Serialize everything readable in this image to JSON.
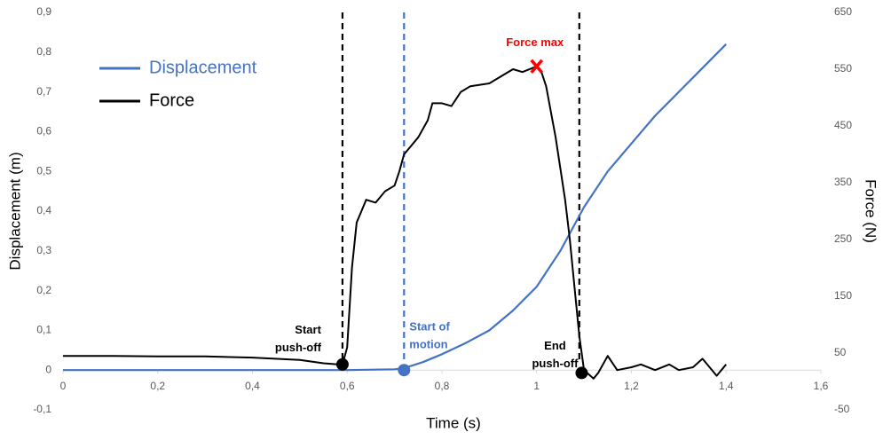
{
  "chart_data": {
    "type": "line",
    "xlabel": "Time (s)",
    "ylabel": "Displacement (m)",
    "y2label": "Force (N)",
    "xlim": [
      0,
      1.6
    ],
    "xticks": [
      0,
      {
        "value": 0.2,
        "label": "0,2"
      },
      {
        "value": 0.4,
        "label": "0,4"
      },
      {
        "value": 0.6,
        "label": "0,6"
      },
      {
        "value": 0.8,
        "label": "0,8"
      },
      1,
      {
        "value": 1.2,
        "label": "1,2"
      },
      {
        "value": 1.4,
        "label": "1,4"
      },
      {
        "value": 1.6,
        "label": "1,6"
      }
    ],
    "ylim": [
      -0.1,
      0.9
    ],
    "yticks": [
      {
        "value": -0.1,
        "label": "-0,1"
      },
      0,
      {
        "value": 0.1,
        "label": "0,1"
      },
      {
        "value": 0.2,
        "label": "0,2"
      },
      {
        "value": 0.3,
        "label": "0,3"
      },
      {
        "value": 0.4,
        "label": "0,4"
      },
      {
        "value": 0.5,
        "label": "0,5"
      },
      {
        "value": 0.6,
        "label": "0,6"
      },
      {
        "value": 0.7,
        "label": "0,7"
      },
      {
        "value": 0.8,
        "label": "0,8"
      },
      {
        "value": 0.9,
        "label": "0,9"
      }
    ],
    "y2lim": [
      -50,
      650
    ],
    "y2ticks": [
      -50,
      50,
      150,
      250,
      350,
      450,
      550,
      650
    ],
    "legend": "upper left",
    "series": [
      {
        "name": "Displacement",
        "color": "#4472c4",
        "axis": "y",
        "x": [
          0,
          0.2,
          0.4,
          0.6,
          0.7,
          0.72,
          0.76,
          0.8,
          0.85,
          0.9,
          0.95,
          1.0,
          1.05,
          1.1,
          1.15,
          1.2,
          1.25,
          1.3,
          1.35,
          1.4
        ],
        "values": [
          0,
          0,
          0,
          0,
          0.002,
          0.005,
          0.02,
          0.04,
          0.068,
          0.1,
          0.15,
          0.21,
          0.3,
          0.41,
          0.5,
          0.57,
          0.64,
          0.7,
          0.76,
          0.82
        ]
      },
      {
        "name": "Force",
        "color": "#000000",
        "axis": "y2",
        "x": [
          0,
          0.1,
          0.2,
          0.3,
          0.4,
          0.5,
          0.55,
          0.58,
          0.59,
          0.6,
          0.61,
          0.62,
          0.63,
          0.64,
          0.66,
          0.68,
          0.7,
          0.71,
          0.72,
          0.75,
          0.77,
          0.78,
          0.8,
          0.82,
          0.84,
          0.86,
          0.9,
          0.93,
          0.95,
          0.97,
          1.0,
          1.01,
          1.02,
          1.04,
          1.06,
          1.07,
          1.09,
          1.1,
          1.12,
          1.13,
          1.15,
          1.17,
          1.2,
          1.22,
          1.25,
          1.28,
          1.3,
          1.33,
          1.35,
          1.38,
          1.4
        ],
        "values": [
          45,
          45,
          44,
          44,
          42,
          38,
          32,
          30,
          30,
          60,
          200,
          280,
          300,
          320,
          315,
          335,
          345,
          370,
          400,
          430,
          460,
          490,
          490,
          485,
          510,
          520,
          525,
          540,
          550,
          545,
          555,
          545,
          520,
          430,
          320,
          250,
          80,
          20,
          5,
          15,
          45,
          20,
          25,
          30,
          20,
          30,
          20,
          25,
          40,
          10,
          30
        ]
      }
    ],
    "vlines": [
      {
        "x": 0.59,
        "color": "#000000"
      },
      {
        "x": 0.72,
        "color": "#4472c4"
      },
      {
        "x": 1.09,
        "color": "#000000"
      }
    ],
    "annotations": [
      {
        "text": [
          "Start",
          "push-off"
        ],
        "x": 0.59,
        "y": 30,
        "axis": "y2",
        "marker": "circle",
        "color": "#000000"
      },
      {
        "text": [
          "Start of",
          "motion"
        ],
        "x": 0.72,
        "y": 0,
        "axis": "y",
        "marker": "circle",
        "color": "#4472c4"
      },
      {
        "text": [
          "Force max"
        ],
        "x": 1.0,
        "y": 555,
        "axis": "y2",
        "marker": "x",
        "color": "#ff0000"
      },
      {
        "text": [
          "End",
          "push-off"
        ],
        "x": 1.095,
        "y": 15,
        "axis": "y2",
        "marker": "circle",
        "color": "#000000"
      }
    ]
  }
}
